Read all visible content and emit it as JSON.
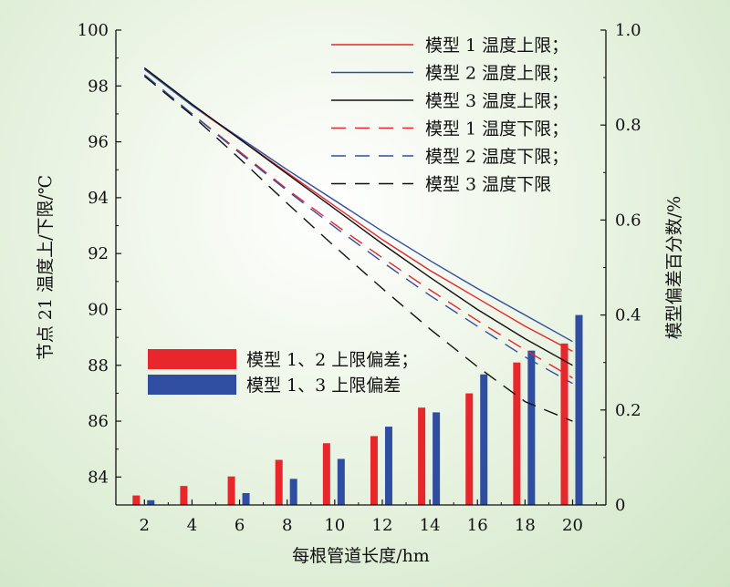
{
  "chart_data": {
    "type": "line",
    "xlabel": "每根管道长度/hm",
    "ylabel_left": "节点 21 温度上/下限/℃",
    "ylabel_right": "模型偏差百分数/%",
    "x_ticks": [
      2,
      4,
      6,
      8,
      10,
      12,
      14,
      16,
      18,
      20
    ],
    "xlim": [
      0.8,
      21.4
    ],
    "ylim_left": [
      83,
      100
    ],
    "yticks_left": [
      84,
      86,
      88,
      90,
      92,
      94,
      96,
      98,
      100
    ],
    "ylim_right": [
      0,
      1.0
    ],
    "yticks_right": [
      "0",
      "0.2",
      "0.4",
      "0.6",
      "0.8",
      "1.0"
    ],
    "x": [
      2,
      4,
      6,
      8,
      10,
      12,
      14,
      16,
      18,
      20
    ],
    "line_series": [
      {
        "name": "模型 1 温度上限；",
        "color": "#e8262b",
        "dash": false,
        "values": [
          98.6,
          97.3,
          96.1,
          94.9,
          93.7,
          92.5,
          91.4,
          90.4,
          89.4,
          88.5
        ]
      },
      {
        "name": "模型 2 温度上限；",
        "color": "#2f4ea2",
        "dash": false,
        "values": [
          98.6,
          97.3,
          96.15,
          95.0,
          93.9,
          92.8,
          91.75,
          90.75,
          89.8,
          88.85
        ]
      },
      {
        "name": "模型 3 温度上限；",
        "color": "#111111",
        "dash": false,
        "values": [
          98.65,
          97.35,
          96.1,
          94.85,
          93.6,
          92.35,
          91.15,
          90.0,
          88.95,
          88.0
        ]
      },
      {
        "name": "模型 1 温度下限；",
        "color": "#e8262b",
        "dash": true,
        "values": [
          98.4,
          97.0,
          95.65,
          94.3,
          93.05,
          91.85,
          90.7,
          89.6,
          88.55,
          87.55
        ]
      },
      {
        "name": "模型 2 温度下限；",
        "color": "#2f4ea2",
        "dash": true,
        "values": [
          98.4,
          97.0,
          95.6,
          94.25,
          92.95,
          91.7,
          90.5,
          89.4,
          88.3,
          87.35
        ]
      },
      {
        "name": "模型 3 温度下限",
        "color": "#111111",
        "dash": true,
        "values": [
          98.35,
          96.95,
          95.4,
          93.8,
          92.25,
          90.75,
          89.3,
          87.95,
          86.7,
          86.0
        ]
      }
    ],
    "bar_series": [
      {
        "name": "模型 1、2 上限偏差；",
        "color": "#e8262b",
        "values": [
          0.02,
          0.04,
          0.06,
          0.095,
          0.13,
          0.145,
          0.205,
          0.235,
          0.3,
          0.34
        ]
      },
      {
        "name": "模型 1、3 上限偏差",
        "color": "#2f4ea2",
        "values": [
          0.01,
          0.0,
          0.025,
          0.055,
          0.097,
          0.165,
          0.195,
          0.275,
          0.325,
          0.4
        ]
      }
    ]
  }
}
